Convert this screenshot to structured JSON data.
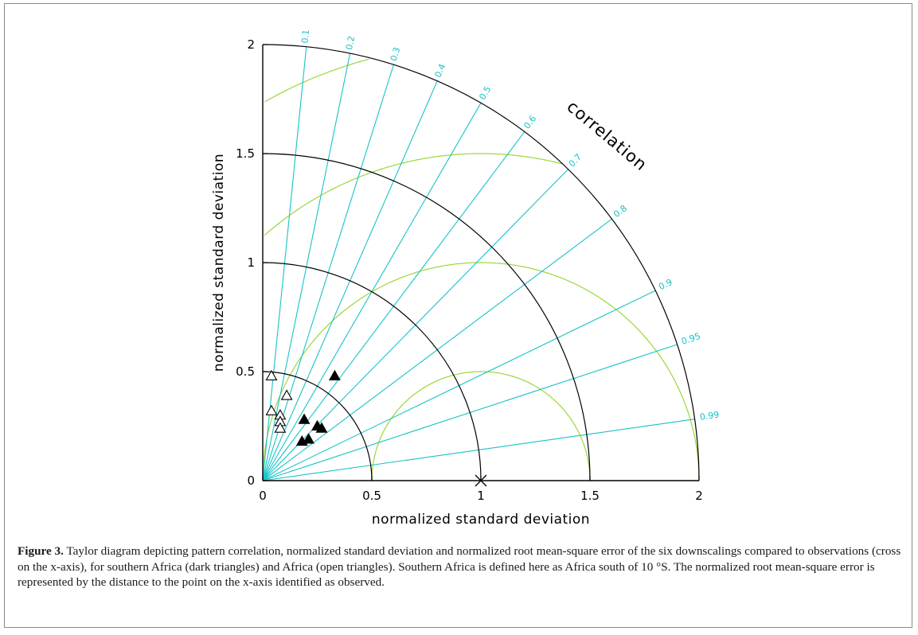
{
  "figure": {
    "caption_label": "Figure 3.",
    "caption_text": "Taylor diagram depicting pattern correlation, normalized standard deviation and normalized root mean-square error of the six downscalings compared to observations (cross on the x-axis), for southern Africa (dark triangles) and Africa (open triangles). Southern Africa is defined here as Africa south of 10 °S. The normalized root mean-square error is represented by the distance to the point on the x-axis identified as observed."
  },
  "chart_data": {
    "type": "scatter",
    "subtype": "taylor_diagram",
    "xlabel": "normalized standard deviation",
    "ylabel": "normalized standard deviation",
    "correlation_label": "correlation",
    "xlim": [
      0,
      2
    ],
    "ylim": [
      0,
      2
    ],
    "x_ticks": [
      "0",
      "0.5",
      "1",
      "1.5",
      "2"
    ],
    "y_ticks": [
      "0",
      "0.5",
      "1",
      "1.5",
      "2"
    ],
    "std_arcs": [
      0.5,
      1,
      1.5,
      2
    ],
    "correlation_ticks": [
      {
        "value": 0.1,
        "label": "0.1"
      },
      {
        "value": 0.2,
        "label": "0.2"
      },
      {
        "value": 0.3,
        "label": "0.3"
      },
      {
        "value": 0.4,
        "label": "0.4"
      },
      {
        "value": 0.5,
        "label": "0.5"
      },
      {
        "value": 0.6,
        "label": "0.6"
      },
      {
        "value": 0.7,
        "label": "0.7"
      },
      {
        "value": 0.8,
        "label": "0.8"
      },
      {
        "value": 0.9,
        "label": "0.9"
      },
      {
        "value": 0.95,
        "label": "0.95"
      },
      {
        "value": 0.99,
        "label": "0.99"
      }
    ],
    "rmse_arcs": [
      0.5,
      1,
      1.5,
      2
    ],
    "reference": {
      "x": 1.0,
      "y": 0.0
    },
    "series": [
      {
        "marker": "filled-triangle",
        "points": [
          {
            "x": 0.33,
            "y": 0.48
          },
          {
            "x": 0.19,
            "y": 0.28
          },
          {
            "x": 0.25,
            "y": 0.25
          },
          {
            "x": 0.27,
            "y": 0.24
          },
          {
            "x": 0.21,
            "y": 0.19
          },
          {
            "x": 0.18,
            "y": 0.18
          }
        ]
      },
      {
        "marker": "open-triangle",
        "points": [
          {
            "x": 0.04,
            "y": 0.48
          },
          {
            "x": 0.11,
            "y": 0.39
          },
          {
            "x": 0.04,
            "y": 0.32
          },
          {
            "x": 0.08,
            "y": 0.3
          },
          {
            "x": 0.08,
            "y": 0.27
          },
          {
            "x": 0.08,
            "y": 0.24
          }
        ]
      }
    ],
    "colors": {
      "axes": "#000000",
      "correlation_lines": "#17c3c9",
      "rmse_arcs": "#9ad73a",
      "std_arcs": "#000000"
    }
  }
}
